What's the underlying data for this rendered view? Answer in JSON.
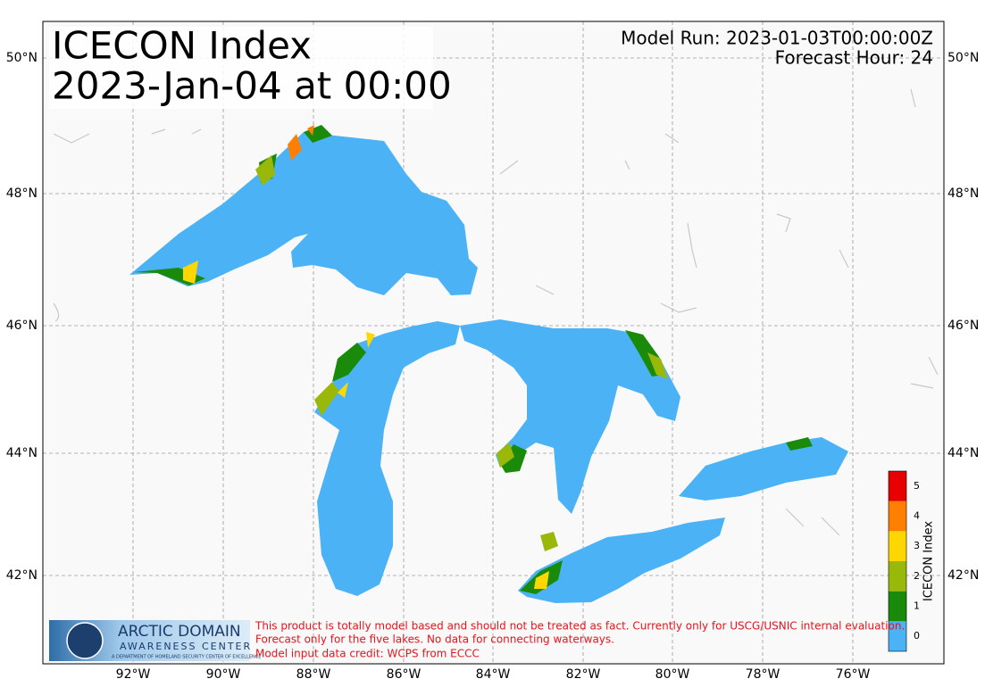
{
  "header": {
    "title": "ICECON Index",
    "valid_time": "2023-Jan-04 at 00:00",
    "model_run": "Model Run: 2023-01-03T00:00:00Z",
    "forecast_hour": "Forecast Hour: 24"
  },
  "axes": {
    "latitude_labels": [
      "50°N",
      "48°N",
      "46°N",
      "44°N",
      "42°N"
    ],
    "longitude_labels": [
      "92°W",
      "90°W",
      "88°W",
      "86°W",
      "84°W",
      "82°W",
      "80°W",
      "78°W",
      "76°W"
    ]
  },
  "colorbar": {
    "title": "ICECON Index",
    "levels": [
      {
        "label": 0,
        "color": "#4bb3f5"
      },
      {
        "label": 1,
        "color": "#1a8a0a"
      },
      {
        "label": 2,
        "color": "#9ab80a"
      },
      {
        "label": 3,
        "color": "#ffd700"
      },
      {
        "label": 4,
        "color": "#ff8000"
      },
      {
        "label": 5,
        "color": "#e60000"
      }
    ]
  },
  "footer": {
    "logo": {
      "name": "ARCTIC DOMAIN",
      "subname": "AWARENESS CENTER",
      "tagline": "A DEPARTMENT OF HOMELAND SECURITY CENTER OF EXCELLENCE"
    },
    "disclaimer": [
      "This product is totally model based and should not be treated as fact. Currently only for USCG/USNIC internal evaluation.",
      "Forecast only for the five lakes. No data for connecting waterways.",
      "Model input data credit: WCPS from ECCC"
    ]
  }
}
